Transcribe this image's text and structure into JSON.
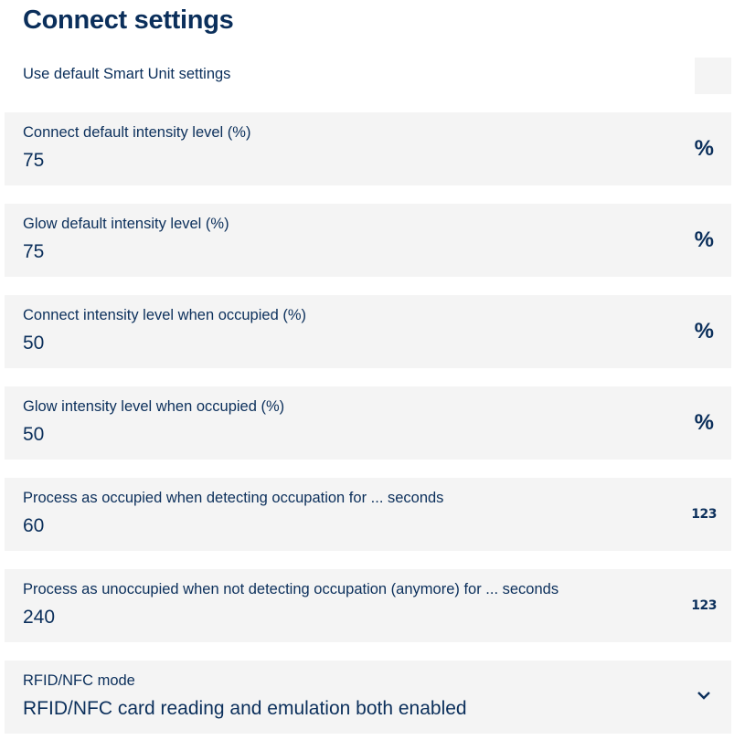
{
  "title": "Connect settings",
  "use_default": {
    "label": "Use default Smart Unit settings"
  },
  "fields": [
    {
      "label": "Connect default intensity level (%)",
      "value": "75",
      "icon": "percent-icon",
      "glyph": "%"
    },
    {
      "label": "Glow default intensity level (%)",
      "value": "75",
      "icon": "percent-icon",
      "glyph": "%"
    },
    {
      "label": "Connect intensity level when occupied (%)",
      "value": "50",
      "icon": "percent-icon",
      "glyph": "%"
    },
    {
      "label": "Glow intensity level when occupied (%)",
      "value": "50",
      "icon": "percent-icon",
      "glyph": "%"
    },
    {
      "label": "Process as occupied when detecting occupation for ... seconds",
      "value": "60",
      "icon": "numeric-icon",
      "glyph": "123"
    },
    {
      "label": "Process as unoccupied when not detecting occupation (anymore) for ... seconds",
      "value": "240",
      "icon": "numeric-icon",
      "glyph": "123"
    },
    {
      "label": "RFID/NFC mode",
      "value": "RFID/NFC card reading and emulation both enabled",
      "icon": "chevron-down-icon"
    }
  ],
  "colors": {
    "text": "#0b2f5b",
    "field_bg": "#f4f4f4"
  }
}
